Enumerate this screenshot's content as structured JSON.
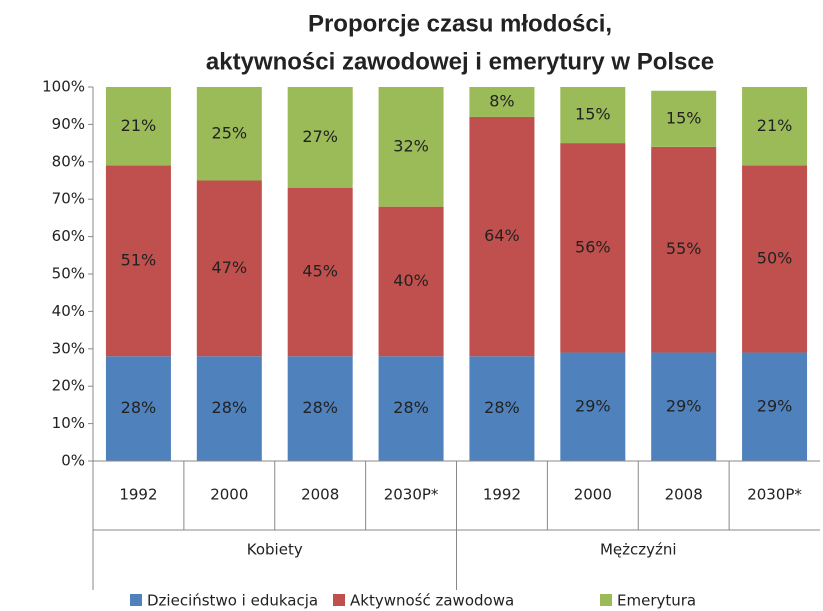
{
  "chart_data": {
    "type": "stacked_bar",
    "title": [
      "Proporcje czasu młodości,",
      "aktywności zawodowej i emerytury w Polsce"
    ],
    "categories": [
      "1992",
      "2000",
      "2008",
      "2030P*",
      "1992",
      "2000",
      "2008",
      "2030P*"
    ],
    "groups": [
      "Kobiety",
      "Mężczyźni"
    ],
    "series": [
      {
        "name": "Dzieciństwo i edukacja",
        "color": "#4f81bd",
        "values": [
          28,
          28,
          28,
          28,
          28,
          29,
          29,
          29
        ],
        "value_labels": [
          "28%",
          "28%",
          "28%",
          "28%",
          "28%",
          "29%",
          "29%",
          "29%"
        ]
      },
      {
        "name": "Aktywność zawodowa",
        "color": "#c0504d",
        "values": [
          51,
          47,
          45,
          40,
          64,
          56,
          55,
          50
        ],
        "value_labels": [
          "51%",
          "47%",
          "45%",
          "40%",
          "64%",
          "56%",
          "55%",
          "50%"
        ]
      },
      {
        "name": "Emerytura",
        "color": "#9bbb59",
        "values": [
          21,
          25,
          27,
          32,
          8,
          15,
          15,
          21
        ],
        "value_labels": [
          "21%",
          "25%",
          "27%",
          "32%",
          "8%",
          "15%",
          "15%",
          "21%"
        ]
      }
    ],
    "ylim": [
      0,
      100
    ],
    "yticks": [
      {
        "value": 0,
        "label": "0%"
      },
      {
        "value": 10,
        "label": "10%"
      },
      {
        "value": 20,
        "label": "20%"
      },
      {
        "value": 30,
        "label": "30%"
      },
      {
        "value": 40,
        "label": "40%"
      },
      {
        "value": 50,
        "label": "50%"
      },
      {
        "value": 60,
        "label": "60%"
      },
      {
        "value": 70,
        "label": "70%"
      },
      {
        "value": 80,
        "label": "80%"
      },
      {
        "value": 90,
        "label": "90%"
      },
      {
        "value": 100,
        "label": "100%"
      }
    ],
    "grid": false,
    "legend": "bottom"
  }
}
